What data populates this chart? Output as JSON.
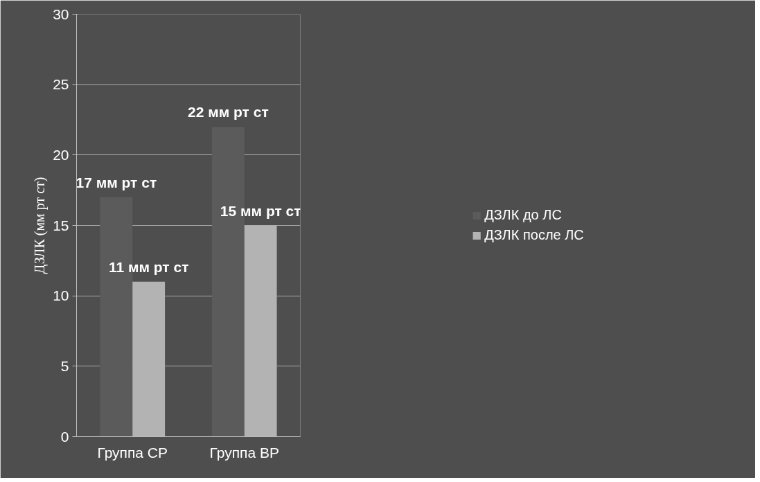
{
  "chart_data": {
    "type": "bar",
    "ylabel": "ДЗЛК (мм рт ст)",
    "categories": [
      "Группа СР",
      "Группа ВР"
    ],
    "series": [
      {
        "name": "ДЗЛК до ЛС",
        "color": "#5b5b5b",
        "values": [
          17,
          22
        ],
        "value_labels": [
          "17 мм рт ст",
          "22 мм рт ст"
        ]
      },
      {
        "name": "ДЗЛК после ЛС",
        "color": "#b3b3b3",
        "values": [
          11,
          15
        ],
        "value_labels": [
          "11 мм рт ст",
          "15 мм рт ст"
        ]
      }
    ],
    "ylim": [
      0,
      30
    ],
    "yticks": [
      0,
      5,
      10,
      15,
      20,
      25,
      30
    ],
    "grid": "y",
    "legend": "right"
  }
}
